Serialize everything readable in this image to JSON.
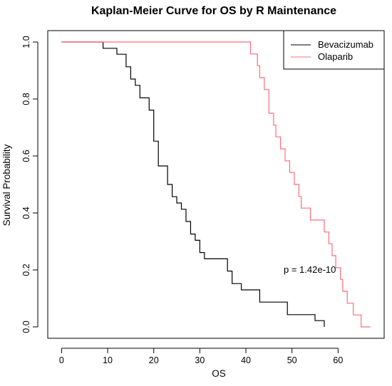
{
  "chart_data": {
    "type": "line",
    "step": true,
    "title": "Kaplan-Meier Curve for OS by R Maintenance",
    "xlabel": "OS",
    "ylabel": "Survival Probability",
    "xlim": [
      -3,
      70
    ],
    "ylim": [
      -0.04,
      1.04
    ],
    "x_ticks": [
      0,
      10,
      20,
      30,
      40,
      50,
      60
    ],
    "y_ticks": [
      0.0,
      0.2,
      0.4,
      0.6,
      0.8,
      1.0
    ],
    "y_tick_labels": [
      "0.0",
      "0.2",
      "0.4",
      "0.6",
      "0.8",
      "1.0"
    ],
    "legend_position": "top-right",
    "annotation": {
      "text": "p = 1.42e-10",
      "x": 47.5,
      "y": 0.2
    },
    "series": [
      {
        "name": "Bevacizumab",
        "color": "#000000",
        "x": [
          0,
          9,
          12,
          14,
          15,
          16,
          17,
          19,
          20,
          21,
          23,
          24,
          25,
          26,
          27,
          28,
          29,
          30,
          31,
          36,
          37,
          39,
          43,
          49,
          55,
          57
        ],
        "y": [
          1.0,
          0.978,
          0.957,
          0.913,
          0.87,
          0.848,
          0.804,
          0.761,
          0.652,
          0.565,
          0.5,
          0.457,
          0.435,
          0.413,
          0.37,
          0.326,
          0.304,
          0.261,
          0.239,
          0.196,
          0.152,
          0.13,
          0.087,
          0.043,
          0.022,
          0.0
        ]
      },
      {
        "name": "Olaparib",
        "color": "#ff6b7a",
        "x": [
          0,
          41,
          42.5,
          43,
          44,
          45,
          46,
          46.5,
          47.5,
          48.5,
          49.5,
          50.5,
          51.5,
          52,
          54,
          57,
          58,
          58.7,
          59.5,
          60.5,
          61,
          62,
          63.3,
          65,
          65.5,
          66,
          67
        ],
        "y": [
          1.0,
          0.958,
          0.917,
          0.875,
          0.833,
          0.75,
          0.708,
          0.667,
          0.625,
          0.583,
          0.542,
          0.5,
          0.458,
          0.417,
          0.375,
          0.333,
          0.292,
          0.25,
          0.208,
          0.167,
          0.125,
          0.083,
          0.042,
          0.0,
          0.0,
          0.0,
          0.0
        ]
      }
    ]
  }
}
